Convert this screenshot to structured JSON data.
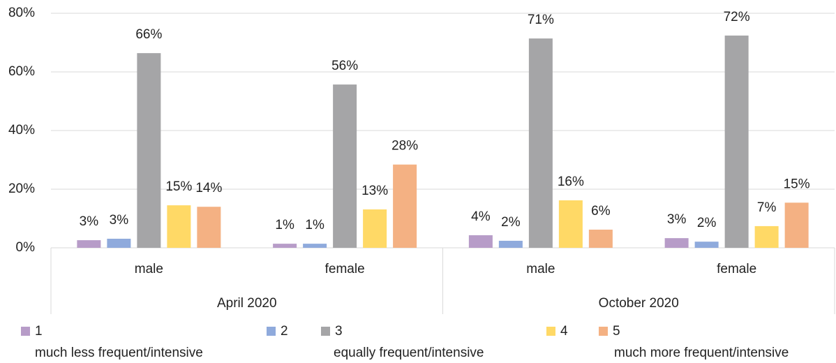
{
  "chart_data": {
    "type": "bar",
    "groups": [
      "April 2020",
      "October 2020"
    ],
    "categories": [
      "male",
      "female",
      "male",
      "female"
    ],
    "series": [
      {
        "name": "1",
        "color": "#b79cc8",
        "values": [
          2.6,
          1.4,
          4.3,
          3.3
        ],
        "value_labels": [
          "3%",
          "1%",
          "4%",
          "3%"
        ]
      },
      {
        "name": "2",
        "color": "#8faadc",
        "values": [
          3.1,
          1.4,
          2.4,
          2.1
        ],
        "value_labels": [
          "3%",
          "1%",
          "2%",
          "2%"
        ]
      },
      {
        "name": "3",
        "color": "#a5a5a7",
        "values": [
          66.4,
          55.7,
          71.4,
          72.4
        ],
        "value_labels": [
          "66%",
          "56%",
          "71%",
          "72%"
        ]
      },
      {
        "name": "4",
        "color": "#ffd966",
        "values": [
          14.5,
          13.1,
          16.2,
          7.4
        ],
        "value_labels": [
          "15%",
          "13%",
          "16%",
          "7%"
        ]
      },
      {
        "name": "5",
        "color": "#f4b183",
        "values": [
          14.0,
          28.4,
          6.2,
          15.4
        ],
        "value_labels": [
          "14%",
          "28%",
          "6%",
          "15%"
        ]
      }
    ],
    "legend_notes": [
      "much less frequent/intensive",
      "equally frequent/intensive",
      "much more frequent/intensive"
    ],
    "ylim": [
      0,
      80
    ],
    "yticks": [
      {
        "value": 0,
        "label": "0%"
      },
      {
        "value": 20,
        "label": "20%"
      },
      {
        "value": 40,
        "label": "40%"
      },
      {
        "value": 60,
        "label": "60%"
      },
      {
        "value": 80,
        "label": "80%"
      }
    ],
    "grid": true
  }
}
